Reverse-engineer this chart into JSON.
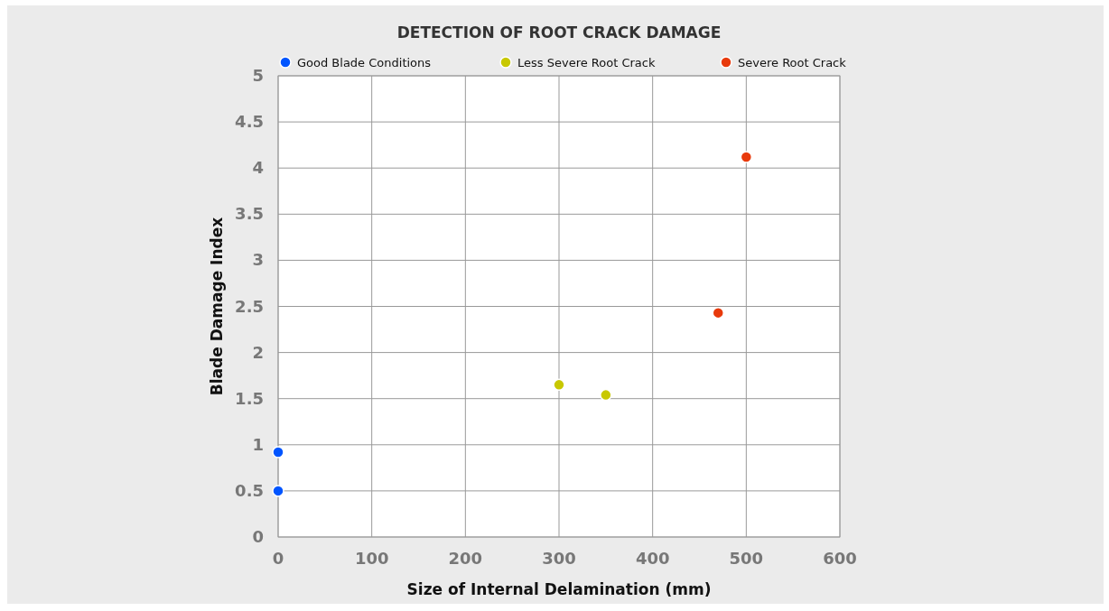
{
  "chart_data": {
    "type": "scatter",
    "title": "DETECTION OF ROOT CRACK DAMAGE",
    "xlabel": "Size of Internal Delamination (mm)",
    "ylabel": "Blade Damage Index",
    "series": [
      {
        "name": "Good Blade Conditions",
        "color": "#0055ff",
        "x": [
          0,
          0
        ],
        "values": [
          0.92,
          0.5
        ]
      },
      {
        "name": "Less Severe Root Crack",
        "color": "#c8c800",
        "x": [
          300,
          350
        ],
        "values": [
          1.65,
          1.54
        ]
      },
      {
        "name": "Severe Root Crack",
        "color": "#e83a0c",
        "x": [
          470,
          500
        ],
        "values": [
          2.43,
          4.12
        ]
      }
    ],
    "xlim": [
      0,
      600
    ],
    "xticks": [
      0,
      100,
      200,
      300,
      400,
      500,
      600
    ],
    "ylim": [
      0,
      5
    ],
    "yticks": [
      0,
      0.5,
      1,
      1.5,
      2,
      2.5,
      3,
      3.5,
      4,
      4.5,
      5
    ],
    "grid": true,
    "legend": "top",
    "marker": "circle"
  }
}
